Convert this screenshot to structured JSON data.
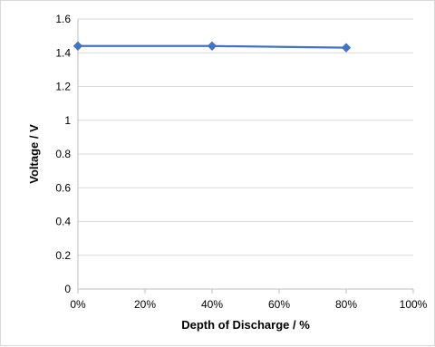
{
  "chart_data": {
    "type": "line",
    "xlabel": "Depth of Discharge / %",
    "ylabel": "Voltage  /  V",
    "x_tick_labels": [
      "0%",
      "20%",
      "40%",
      "60%",
      "80%",
      "100%"
    ],
    "y_tick_labels": [
      "0",
      "0.2",
      "0.4",
      "0.6",
      "0.8",
      "1",
      "1.2",
      "1.4",
      "1.6"
    ],
    "xlim": [
      0,
      100
    ],
    "ylim": [
      0,
      1.6
    ],
    "grid": true,
    "legend": "none",
    "series": [
      {
        "x": [
          0,
          40,
          80
        ],
        "y": [
          1.44,
          1.44,
          1.43
        ],
        "color": "#4472c4",
        "marker": "diamond"
      }
    ]
  }
}
